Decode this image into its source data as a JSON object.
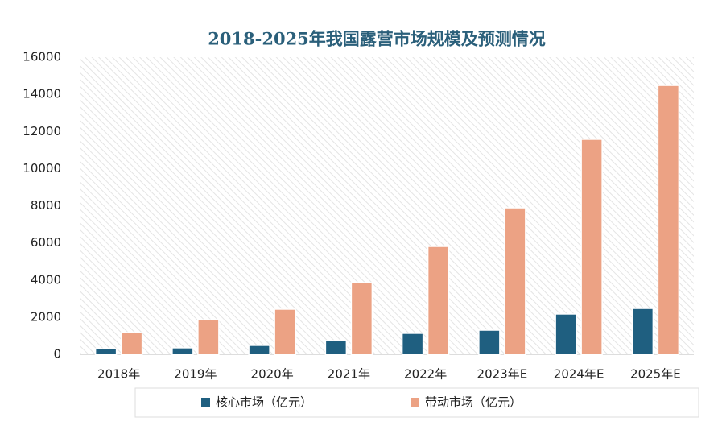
{
  "chart_data": {
    "type": "bar",
    "title": "2018-2025年我国露营市场规模及预测情况",
    "categories": [
      "2018年",
      "2019年",
      "2020年",
      "2021年",
      "2022年",
      "2023年E",
      "2024年E",
      "2025年E"
    ],
    "series": [
      {
        "name": "核心市场（亿元）",
        "color": "#1f5f80",
        "values": [
          300,
          350,
          480,
          740,
          1130,
          1300,
          2170,
          2470
        ]
      },
      {
        "name": "带动市场（亿元）",
        "color": "#eca284",
        "values": [
          1170,
          1860,
          2430,
          3860,
          5810,
          7890,
          11580,
          14480
        ]
      }
    ],
    "ylim": [
      0,
      16000
    ],
    "yticks": [
      0,
      2000,
      4000,
      6000,
      8000,
      10000,
      12000,
      14000,
      16000
    ],
    "legend": "bottom"
  }
}
